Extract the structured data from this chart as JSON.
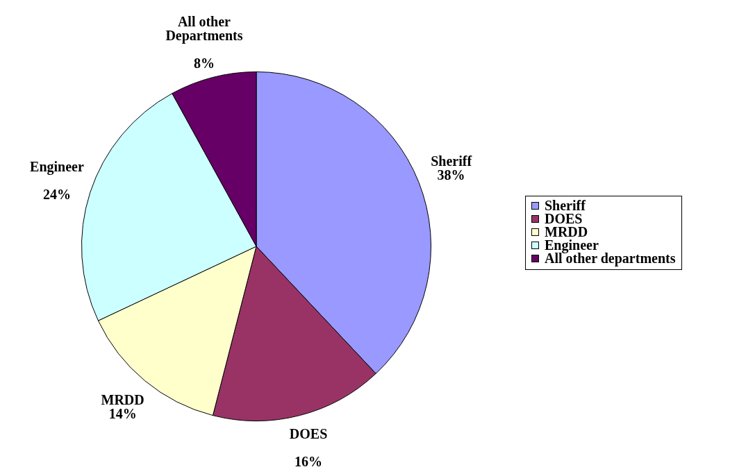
{
  "chart_data": {
    "type": "pie",
    "categories": [
      "Sheriff",
      "DOES",
      "MRDD",
      "Engineer",
      "All other departments"
    ],
    "values": [
      38,
      16,
      14,
      24,
      8
    ],
    "colors": [
      "#9999ff",
      "#993366",
      "#ffffcc",
      "#ccffff",
      "#660066"
    ],
    "value_labels": [
      "Sheriff\n38%",
      "DOES\n\n16%",
      "MRDD\n14%",
      "Engineer\n\n24%",
      "All other\nDepartments\n\n8%"
    ],
    "legend": "right"
  }
}
